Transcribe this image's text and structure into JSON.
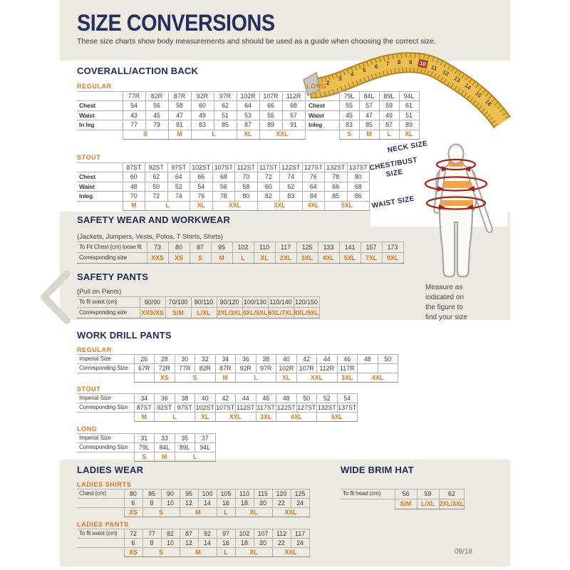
{
  "page": {
    "title": "SIZE CONVERSIONS",
    "subtitle": "These size charts show body measurements and should be used as a guide when choosing the correct size.",
    "page_number": "09/18",
    "accent_orange": "#e2761c",
    "navy": "#242e60",
    "beige": "#edebe1"
  },
  "tape": {
    "numbers": [
      "2",
      "3",
      "4",
      "5",
      "6",
      "7",
      "8",
      "9",
      "10",
      "11",
      "12",
      "13",
      "14",
      "15",
      "16"
    ],
    "highlight": "10"
  },
  "figure": {
    "neck_label": "NECK SIZE",
    "chest_label": "CHEST/BUST SIZE",
    "waist_label": "WAIST SIZE",
    "caption_lines": [
      "Measure as",
      "indicated on",
      "the figure to",
      "find your size"
    ]
  },
  "sections": {
    "coverall": {
      "heading": "COVERALL/ACTION BACK",
      "tables": {
        "regular": {
          "label": "REGULAR",
          "rows": [
            {
              "k": "head",
              "label": "",
              "cells": [
                "77R",
                "82R",
                "87R",
                "92R",
                "97R",
                "102R",
                "107R",
                "112R"
              ]
            },
            {
              "k": "num",
              "label": "Chest",
              "cells": [
                "54",
                "56",
                "58",
                "60",
                "62",
                "64",
                "66",
                "68"
              ]
            },
            {
              "k": "num",
              "label": "Waist",
              "cells": [
                "43",
                "45",
                "47",
                "49",
                "51",
                "53",
                "55",
                "57"
              ]
            },
            {
              "k": "num",
              "label": "In leg",
              "cells": [
                "77",
                "79",
                "81",
                "83",
                "85",
                "87",
                "89",
                "91"
              ]
            },
            {
              "k": "size",
              "label": "",
              "cells": [
                {
                  "t": "S",
                  "span": 2
                },
                {
                  "t": "M",
                  "span": 1
                },
                {
                  "t": "L",
                  "span": 2
                },
                {
                  "t": "XL",
                  "span": 1
                },
                {
                  "t": "XXL",
                  "span": 2
                }
              ]
            }
          ]
        },
        "long": {
          "label": "LONG",
          "rows": [
            {
              "k": "head",
              "label": "",
              "cells": [
                "79L",
                "84L",
                "89L",
                "94L"
              ]
            },
            {
              "k": "num",
              "label": "Chest",
              "cells": [
                "55",
                "57",
                "59",
                "61"
              ]
            },
            {
              "k": "num",
              "label": "Waist",
              "cells": [
                "45",
                "47",
                "49",
                "51"
              ]
            },
            {
              "k": "num",
              "label": "Inleg",
              "cells": [
                "83",
                "85",
                "87",
                "89"
              ]
            },
            {
              "k": "size",
              "label": "",
              "cells": [
                {
                  "t": "S",
                  "span": 1
                },
                {
                  "t": "M",
                  "span": 1
                },
                {
                  "t": "L",
                  "span": 1
                },
                {
                  "t": "XL",
                  "span": 1
                }
              ]
            }
          ]
        },
        "stout": {
          "label": "STOUT",
          "rows": [
            {
              "k": "head",
              "label": "",
              "cells": [
                "87ST",
                "92ST",
                "97ST",
                "102ST",
                "107ST",
                "112ST",
                "117ST",
                "122ST",
                "127ST",
                "132ST",
                "137ST"
              ]
            },
            {
              "k": "num",
              "label": "Chest",
              "cells": [
                "60",
                "62",
                "64",
                "66",
                "68",
                "70",
                "72",
                "74",
                "76",
                "78",
                "80"
              ]
            },
            {
              "k": "num",
              "label": "Waist",
              "cells": [
                "48",
                "50",
                "52",
                "54",
                "56",
                "58",
                "60",
                "62",
                "64",
                "66",
                "68"
              ]
            },
            {
              "k": "num",
              "label": "Inleg",
              "cells": [
                "70",
                "72",
                "74",
                "76",
                "78",
                "80",
                "82",
                "83",
                "84",
                "85",
                "86"
              ]
            },
            {
              "k": "size",
              "label": "",
              "cells": [
                {
                  "t": "M",
                  "span": 1
                },
                {
                  "t": "L",
                  "span": 2
                },
                {
                  "t": "XL",
                  "span": 1
                },
                {
                  "t": "XXL",
                  "span": 2
                },
                {
                  "t": "3XL",
                  "span": 2
                },
                {
                  "t": "4XL",
                  "span": 1
                },
                {
                  "t": "5XL",
                  "span": 2
                }
              ]
            }
          ]
        }
      }
    },
    "safety_wear": {
      "heading": "SAFETY WEAR AND WORKWEAR",
      "note": "(Jackets, Jumpers, Vests, Polos, T Shirts, Shirts)",
      "table": {
        "rows": [
          {
            "k": "num",
            "label": "To Fit Chest (cm) loose fit",
            "cells": [
              "73",
              "80",
              "87",
              "95",
              "102",
              "110",
              "117",
              "125",
              "133",
              "141",
              "157",
              "173"
            ]
          },
          {
            "k": "size",
            "label": "Corresponding size",
            "cells": [
              "XXS",
              "XS",
              "S",
              "M",
              "L",
              "XL",
              "2XL",
              "3XL",
              "4XL",
              "5XL",
              "7XL",
              "9XL"
            ]
          }
        ]
      }
    },
    "safety_pants": {
      "heading": "SAFETY PANTS",
      "note": "(Pull on Pants)",
      "table": {
        "rows": [
          {
            "k": "num",
            "label": "To fit waist (cm)",
            "cells": [
              "60/90",
              "70/100",
              "80/110",
              "90/120",
              "100/130",
              "110/140",
              "120/150"
            ]
          },
          {
            "k": "size",
            "label": "Corresponding size",
            "cells": [
              "XXS/XS",
              "S/M",
              "L/XL",
              "2XL/3XL",
              "4XL/5XL",
              "6XL/7XL",
              "8XL/9XL"
            ]
          }
        ]
      }
    },
    "work_drill": {
      "heading": "WORK DRILL PANTS",
      "tables": {
        "regular": {
          "label": "REGULAR",
          "rows": [
            {
              "k": "num",
              "label": "Imperial Size",
              "cells": [
                "26",
                "28",
                "30",
                "32",
                "34",
                "36",
                "38",
                "40",
                "42",
                "44",
                "46",
                "48",
                "50"
              ]
            },
            {
              "k": "head",
              "label": "Corresponding Size",
              "cells": [
                "67R",
                "72R",
                "77R",
                "82R",
                "87R",
                "92R",
                "97R",
                "102R",
                "107R",
                "112R",
                "117R",
                "",
                ""
              ]
            },
            {
              "k": "size",
              "label": "",
              "cells": [
                {
                  "t": "",
                  "span": 1
                },
                {
                  "t": "XS",
                  "span": 1
                },
                {
                  "t": "S",
                  "span": 2
                },
                {
                  "t": "M",
                  "span": 1
                },
                {
                  "t": "L",
                  "span": 2
                },
                {
                  "t": "XL",
                  "span": 1
                },
                {
                  "t": "XXL",
                  "span": 2
                },
                {
                  "t": "3XL",
                  "span": 1
                },
                {
                  "t": "4XL",
                  "span": 2
                }
              ]
            }
          ]
        },
        "stout": {
          "label": "STOUT",
          "rows": [
            {
              "k": "num",
              "label": "Imperial Size",
              "cells": [
                "34",
                "36",
                "38",
                "40",
                "42",
                "44",
                "46",
                "48",
                "50",
                "52",
                "54"
              ]
            },
            {
              "k": "head",
              "label": "Corresponding Size",
              "cells": [
                "87ST",
                "92ST",
                "97ST",
                "102ST",
                "107ST",
                "112ST",
                "117ST",
                "122ST",
                "127ST",
                "132ST",
                "137ST"
              ]
            },
            {
              "k": "size",
              "label": "",
              "cells": [
                {
                  "t": "M",
                  "span": 1
                },
                {
                  "t": "L",
                  "span": 2
                },
                {
                  "t": "XL",
                  "span": 1
                },
                {
                  "t": "XXL",
                  "span": 2
                },
                {
                  "t": "3XL",
                  "span": 1
                },
                {
                  "t": "4XL",
                  "span": 2
                },
                {
                  "t": "5XL",
                  "span": 2
                }
              ]
            }
          ]
        },
        "long": {
          "label": "LONG",
          "rows": [
            {
              "k": "num",
              "label": "Imperial Size",
              "cells": [
                "31",
                "33",
                "35",
                "37"
              ]
            },
            {
              "k": "head",
              "label": "Corresponding Size",
              "cells": [
                "79L",
                "84L",
                "89L",
                "94L"
              ]
            },
            {
              "k": "size",
              "label": "",
              "cells": [
                {
                  "t": "S",
                  "span": 1
                },
                {
                  "t": "M",
                  "span": 1
                },
                {
                  "t": "L",
                  "span": 2
                }
              ]
            }
          ]
        }
      }
    },
    "ladies": {
      "heading": "LADIES WEAR",
      "tables": {
        "shirts": {
          "label": "LADIES SHIRTS",
          "rows": [
            {
              "k": "num",
              "label": "Chest (cm)",
              "cells": [
                "80",
                "85",
                "90",
                "95",
                "100",
                "105",
                "110",
                "115",
                "120",
                "125"
              ]
            },
            {
              "k": "num",
              "label": "",
              "cells": [
                "6",
                "8",
                "10",
                "12",
                "14",
                "16",
                "18",
                "20",
                "22",
                "24"
              ]
            },
            {
              "k": "size",
              "label": "",
              "cells": [
                {
                  "t": "XS",
                  "span": 1
                },
                {
                  "t": "S",
                  "span": 2
                },
                {
                  "t": "M",
                  "span": 2
                },
                {
                  "t": "L",
                  "span": 1
                },
                {
                  "t": "XL",
                  "span": 2
                },
                {
                  "t": "XXL",
                  "span": 2
                }
              ]
            }
          ]
        },
        "pants": {
          "label": "LADIES PANTS",
          "rows": [
            {
              "k": "num",
              "label": "To fit waist (cm)",
              "cells": [
                "72",
                "77",
                "82",
                "87",
                "92",
                "97",
                "102",
                "107",
                "112",
                "117"
              ]
            },
            {
              "k": "num",
              "label": "",
              "cells": [
                "6",
                "8",
                "10",
                "12",
                "14",
                "16",
                "18",
                "20",
                "22",
                "24"
              ]
            },
            {
              "k": "size",
              "label": "",
              "cells": [
                {
                  "t": "XS",
                  "span": 1
                },
                {
                  "t": "S",
                  "span": 2
                },
                {
                  "t": "M",
                  "span": 2
                },
                {
                  "t": "L",
                  "span": 1
                },
                {
                  "t": "XL",
                  "span": 2
                },
                {
                  "t": "XXL",
                  "span": 2
                }
              ]
            }
          ]
        }
      }
    },
    "hat": {
      "heading": "WIDE BRIM HAT",
      "table": {
        "rows": [
          {
            "k": "num",
            "label": "To fit head (cm)",
            "cells": [
              "56",
              "59",
              "62"
            ]
          },
          {
            "k": "size",
            "label": "",
            "cells": [
              {
                "t": "S/M",
                "span": 1
              },
              {
                "t": "L/XL",
                "span": 1
              },
              {
                "t": "2XL/3XL",
                "span": 1
              }
            ]
          }
        ]
      }
    }
  }
}
